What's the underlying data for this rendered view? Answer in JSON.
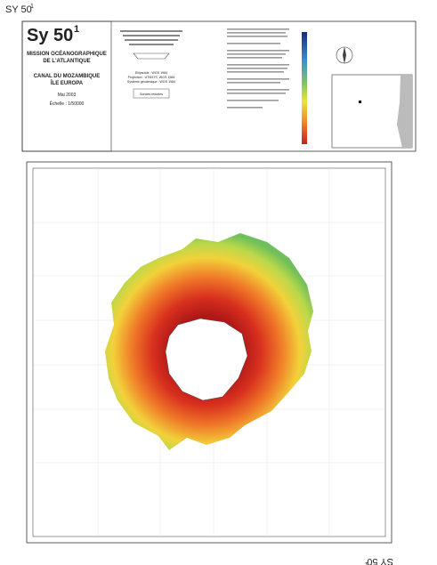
{
  "sheet_code": {
    "text": "SY 50",
    "sup": "1"
  },
  "header": {
    "code": {
      "text": "Sy 50",
      "sup": "1"
    },
    "title_lines": [
      "MISSION OCÉANOGRAPHIQUE",
      "DE L'ATLANTIQUE"
    ],
    "area_lines": [
      "CANAL DU MOZAMBIQUE",
      "ÎLE EUROPA"
    ],
    "date": "Mai 2003",
    "scale": "Échelle : 1/50000"
  },
  "geodesy": [
    "Ellipsoïde : WGS 1984",
    "Projection : UTM37S, WGS 1984",
    "Système géodésique : WGS 1984"
  ],
  "soundings_note": "Sondes réduites",
  "footer_code": {
    "text": "SY 50",
    "sup": "1"
  }
}
